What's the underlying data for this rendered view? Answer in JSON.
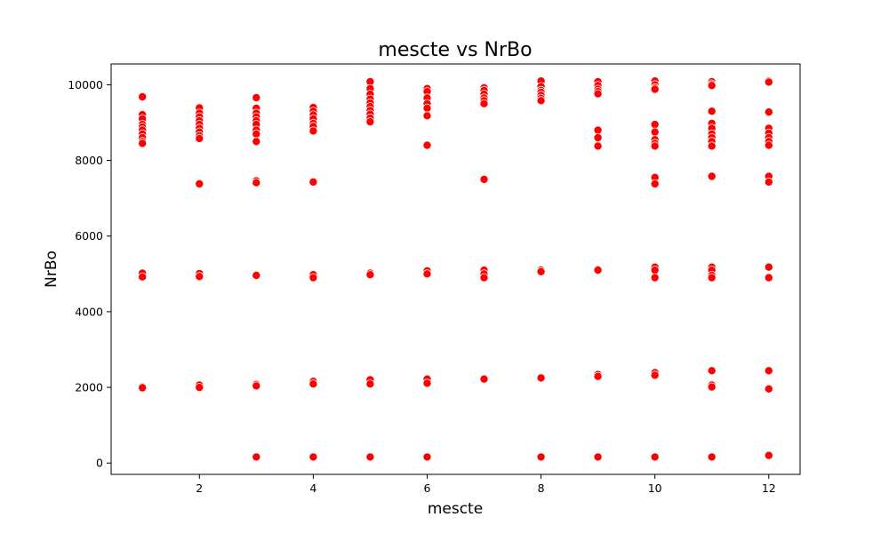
{
  "chart_data": {
    "type": "scatter",
    "title": "mescte vs NrBo",
    "xlabel": "mescte",
    "ylabel": "NrBo",
    "xlim": [
      0.45,
      12.55
    ],
    "ylim": [
      -300,
      10550
    ],
    "xticks": [
      2,
      4,
      6,
      8,
      10,
      12
    ],
    "yticks": [
      0,
      2000,
      4000,
      6000,
      8000,
      10000
    ],
    "grid": false,
    "marker_color": "#ff0000",
    "marker_edge_color": "#ffffff",
    "series": [
      {
        "points": [
          [
            1,
            9680
          ],
          [
            1,
            9210
          ],
          [
            1,
            9100
          ],
          [
            1,
            8950
          ],
          [
            1,
            8880
          ],
          [
            1,
            8800
          ],
          [
            1,
            8700
          ],
          [
            1,
            8600
          ],
          [
            1,
            8500
          ],
          [
            1,
            8450
          ],
          [
            1,
            5020
          ],
          [
            1,
            4920
          ],
          [
            1,
            2010
          ],
          [
            1,
            1990
          ],
          [
            2,
            9390
          ],
          [
            2,
            9250
          ],
          [
            2,
            9150
          ],
          [
            2,
            9050
          ],
          [
            2,
            8950
          ],
          [
            2,
            8850
          ],
          [
            2,
            8750
          ],
          [
            2,
            8650
          ],
          [
            2,
            8580
          ],
          [
            2,
            7380
          ],
          [
            2,
            5010
          ],
          [
            2,
            4930
          ],
          [
            2,
            2060
          ],
          [
            2,
            2000
          ],
          [
            3,
            9660
          ],
          [
            3,
            9380
          ],
          [
            3,
            9250
          ],
          [
            3,
            9150
          ],
          [
            3,
            9050
          ],
          [
            3,
            8950
          ],
          [
            3,
            8800
          ],
          [
            3,
            8700
          ],
          [
            3,
            8500
          ],
          [
            3,
            7460
          ],
          [
            3,
            7410
          ],
          [
            3,
            4960
          ],
          [
            3,
            2080
          ],
          [
            3,
            2040
          ],
          [
            3,
            160
          ],
          [
            4,
            9400
          ],
          [
            4,
            9300
          ],
          [
            4,
            9200
          ],
          [
            4,
            9100
          ],
          [
            4,
            8980
          ],
          [
            4,
            8900
          ],
          [
            4,
            8780
          ],
          [
            4,
            7430
          ],
          [
            4,
            4980
          ],
          [
            4,
            4900
          ],
          [
            4,
            2160
          ],
          [
            4,
            2090
          ],
          [
            4,
            160
          ],
          [
            5,
            10080
          ],
          [
            5,
            9900
          ],
          [
            5,
            9750
          ],
          [
            5,
            9620
          ],
          [
            5,
            9520
          ],
          [
            5,
            9420
          ],
          [
            5,
            9320
          ],
          [
            5,
            9220
          ],
          [
            5,
            9120
          ],
          [
            5,
            9020
          ],
          [
            5,
            5020
          ],
          [
            5,
            4980
          ],
          [
            5,
            2200
          ],
          [
            5,
            2090
          ],
          [
            5,
            160
          ],
          [
            6,
            9900
          ],
          [
            6,
            9820
          ],
          [
            6,
            9650
          ],
          [
            6,
            9500
          ],
          [
            6,
            9380
          ],
          [
            6,
            9180
          ],
          [
            6,
            8400
          ],
          [
            6,
            5080
          ],
          [
            6,
            5000
          ],
          [
            6,
            2220
          ],
          [
            6,
            2110
          ],
          [
            6,
            160
          ],
          [
            7,
            9920
          ],
          [
            7,
            9850
          ],
          [
            7,
            9750
          ],
          [
            7,
            9650
          ],
          [
            7,
            9580
          ],
          [
            7,
            9500
          ],
          [
            7,
            7500
          ],
          [
            7,
            5100
          ],
          [
            7,
            5000
          ],
          [
            7,
            4900
          ],
          [
            7,
            2220
          ],
          [
            8,
            10100
          ],
          [
            8,
            9950
          ],
          [
            8,
            9850
          ],
          [
            8,
            9800
          ],
          [
            8,
            9720
          ],
          [
            8,
            9640
          ],
          [
            8,
            9580
          ],
          [
            8,
            5100
          ],
          [
            8,
            5060
          ],
          [
            8,
            2250
          ],
          [
            8,
            160
          ],
          [
            9,
            10080
          ],
          [
            9,
            9980
          ],
          [
            9,
            9880
          ],
          [
            9,
            9820
          ],
          [
            9,
            9760
          ],
          [
            9,
            8800
          ],
          [
            9,
            8600
          ],
          [
            9,
            8380
          ],
          [
            9,
            5120
          ],
          [
            9,
            5100
          ],
          [
            9,
            2340
          ],
          [
            9,
            2290
          ],
          [
            9,
            160
          ],
          [
            10,
            10100
          ],
          [
            10,
            10000
          ],
          [
            10,
            9920
          ],
          [
            10,
            9880
          ],
          [
            10,
            8950
          ],
          [
            10,
            8750
          ],
          [
            10,
            8550
          ],
          [
            10,
            8450
          ],
          [
            10,
            8380
          ],
          [
            10,
            7550
          ],
          [
            10,
            7380
          ],
          [
            10,
            5180
          ],
          [
            10,
            5100
          ],
          [
            10,
            4900
          ],
          [
            10,
            2390
          ],
          [
            10,
            2320
          ],
          [
            10,
            160
          ],
          [
            11,
            10080
          ],
          [
            11,
            10020
          ],
          [
            11,
            9980
          ],
          [
            11,
            9300
          ],
          [
            11,
            8980
          ],
          [
            11,
            8850
          ],
          [
            11,
            8700
          ],
          [
            11,
            8600
          ],
          [
            11,
            8500
          ],
          [
            11,
            8380
          ],
          [
            11,
            7580
          ],
          [
            11,
            5180
          ],
          [
            11,
            5100
          ],
          [
            11,
            4960
          ],
          [
            11,
            4900
          ],
          [
            11,
            2440
          ],
          [
            11,
            2060
          ],
          [
            11,
            2010
          ],
          [
            11,
            160
          ],
          [
            12,
            10100
          ],
          [
            12,
            10070
          ],
          [
            12,
            9280
          ],
          [
            12,
            8850
          ],
          [
            12,
            8720
          ],
          [
            12,
            8600
          ],
          [
            12,
            8500
          ],
          [
            12,
            8400
          ],
          [
            12,
            7580
          ],
          [
            12,
            7430
          ],
          [
            12,
            5180
          ],
          [
            12,
            4900
          ],
          [
            12,
            2440
          ],
          [
            12,
            1960
          ],
          [
            12,
            200
          ]
        ]
      }
    ]
  }
}
